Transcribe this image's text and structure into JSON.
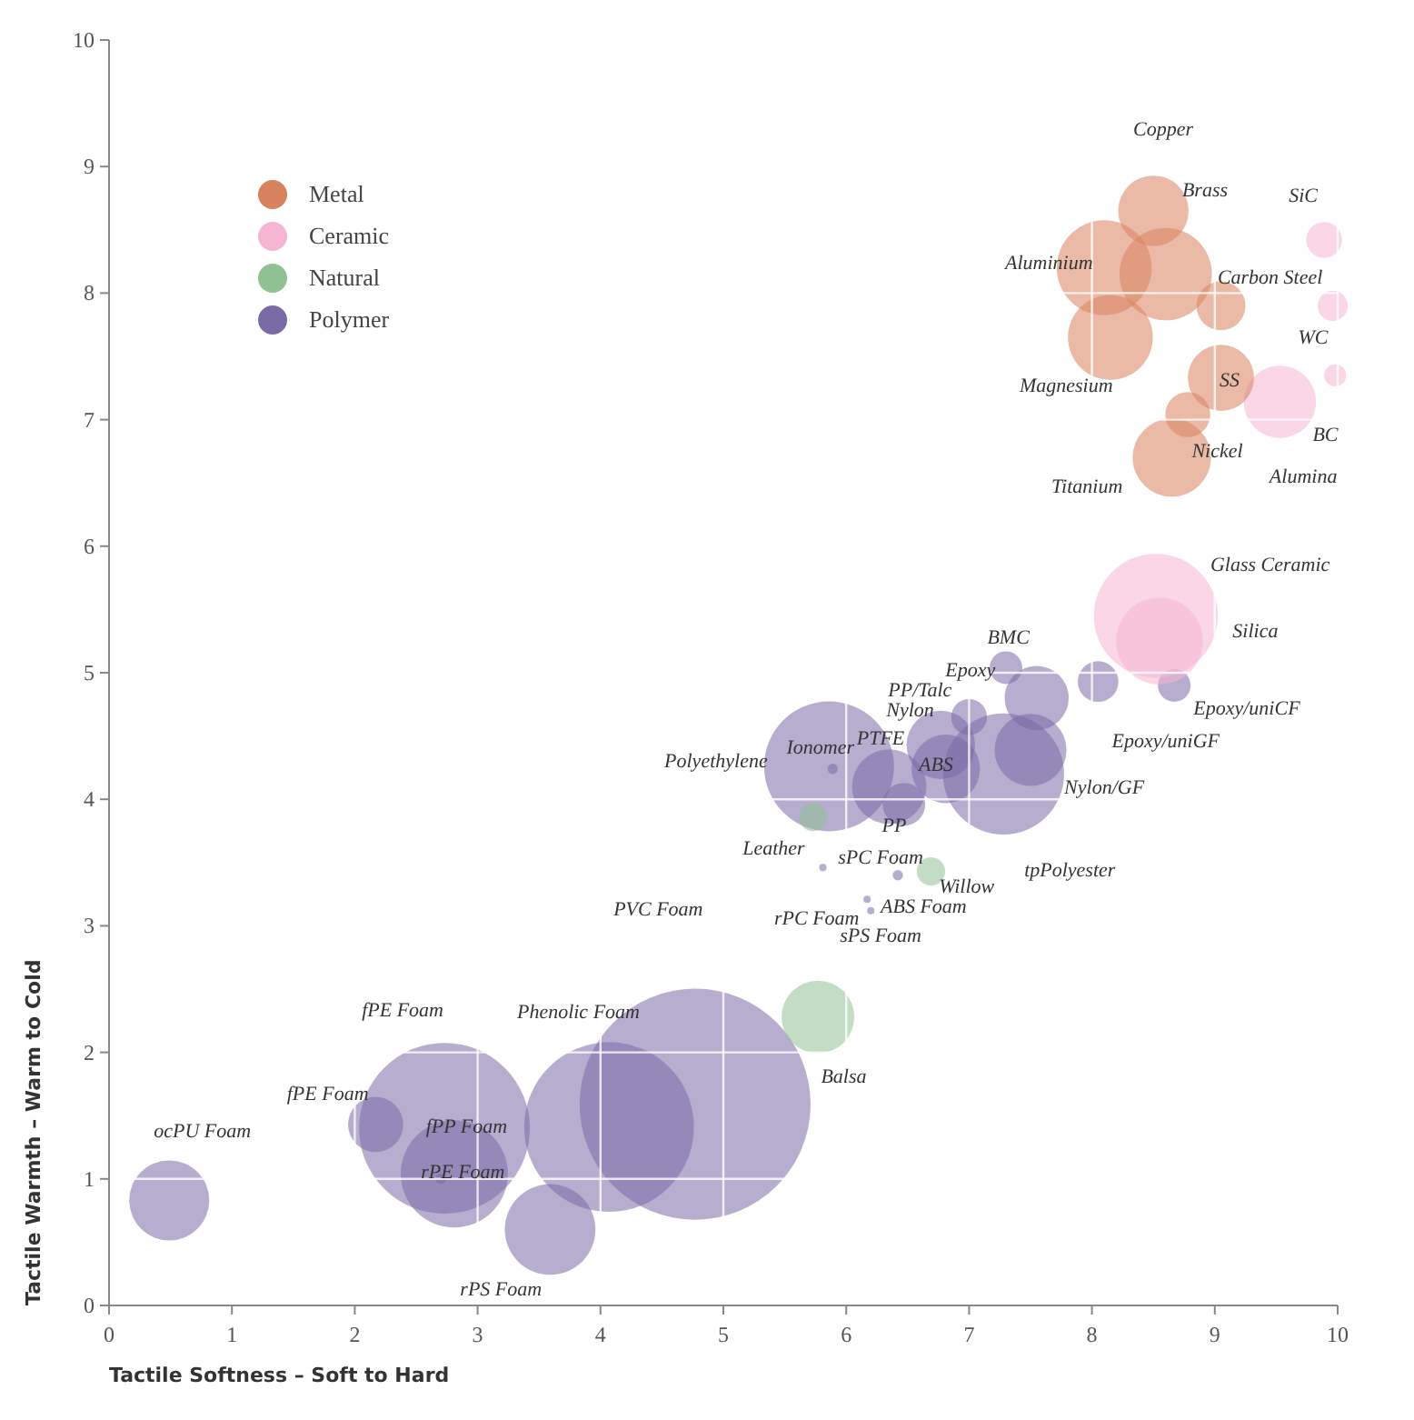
{
  "chart_data": {
    "type": "bubble",
    "xlabel": "Tactile Softness – Soft to Hard",
    "ylabel": "Tactile Warmth – Warm to Cold",
    "xlim": [
      0,
      10
    ],
    "ylim": [
      0,
      10
    ],
    "xticks": [
      0,
      1,
      2,
      3,
      4,
      5,
      6,
      7,
      8,
      9,
      10
    ],
    "yticks": [
      0,
      1,
      2,
      3,
      4,
      5,
      6,
      7,
      8,
      9,
      10
    ],
    "grid": true,
    "legend": "top left",
    "marker": "circle",
    "series": [
      {
        "name": "Polymer",
        "color": "#7b6aa5",
        "x": [
          7.28,
          5.86,
          5.89,
          6.35,
          6.77,
          7.0,
          6.81,
          6.47,
          7.3,
          7.55,
          7.5,
          8.05,
          8.67,
          5.81,
          6.42,
          6.17,
          6.2,
          0.49,
          2.73,
          2.17,
          2.81,
          2.7,
          4.07,
          4.77,
          3.59
        ],
        "values": [
          4.2,
          4.26,
          4.24,
          4.1,
          4.43,
          4.65,
          4.24,
          3.96,
          5.04,
          4.8,
          4.39,
          4.93,
          4.9,
          3.46,
          3.4,
          3.21,
          3.12,
          0.83,
          1.4,
          1.43,
          1.04,
          1.0,
          1.41,
          1.59,
          0.6
        ],
        "sizes": [
          0.275,
          0.316,
          0.002,
          0.104,
          0.088,
          0.024,
          0.088,
          0.034,
          0.02,
          0.077,
          0.097,
          0.031,
          0.02,
          0.001,
          0.002,
          0.001,
          0.001,
          0.12,
          0.547,
          0.057,
          0.215,
          0.002,
          0.54,
          1,
          0.154
        ]
      },
      {
        "name": "Natural",
        "color": "#8fc193",
        "x": [
          5.73,
          6.69,
          5.77
        ],
        "values": [
          3.86,
          3.43,
          2.28
        ],
        "sizes": [
          0.015,
          0.015,
          0.099
        ]
      },
      {
        "name": "Ceramic",
        "color": "#f5b5d3",
        "x": [
          8.52,
          8.55,
          9.89,
          9.96,
          9.98,
          9.53
        ],
        "values": [
          5.45,
          5.25,
          8.42,
          7.9,
          7.35,
          7.14
        ],
        "sizes": [
          0.288,
          0.141,
          0.024,
          0.017,
          0.009,
          0.098
        ]
      },
      {
        "name": "Metal",
        "color": "#d9825e",
        "x": [
          8.5,
          8.1,
          8.15,
          8.6,
          9.05,
          9.05,
          8.78,
          8.65
        ],
        "values": [
          8.65,
          8.2,
          7.65,
          8.15,
          7.9,
          7.33,
          7.04,
          6.7
        ],
        "sizes": [
          0.093,
          0.169,
          0.135,
          0.16,
          0.045,
          0.082,
          0.038,
          0.115
        ]
      }
    ],
    "annotations": [
      "Copper",
      "Brass",
      "SiC",
      "Aluminium",
      "Carbon Steel",
      "WC",
      "Magnesium",
      "SS",
      "BC",
      "Nickel",
      "Alumina",
      "Titanium",
      "Glass Ceramic",
      "Silica",
      "BMC",
      "Epoxy",
      "PP/Talc",
      "Nylon",
      "Epoxy/uniCF",
      "PTFE",
      "Epoxy/uniGF",
      "Polyethylene",
      "Ionomer",
      "ABS",
      "Nylon/GF",
      "PP",
      "Leather",
      "sPC Foam",
      "tpPolyester",
      "Willow",
      "rPC Foam",
      "ABS Foam",
      "sPS Foam",
      "PVC Foam",
      "fPE Foam",
      "Phenolic Foam",
      "Balsa",
      "fPE Foam",
      "fPP Foam",
      "ocPU Foam",
      "rPE Foam",
      "rPS Foam"
    ]
  }
}
